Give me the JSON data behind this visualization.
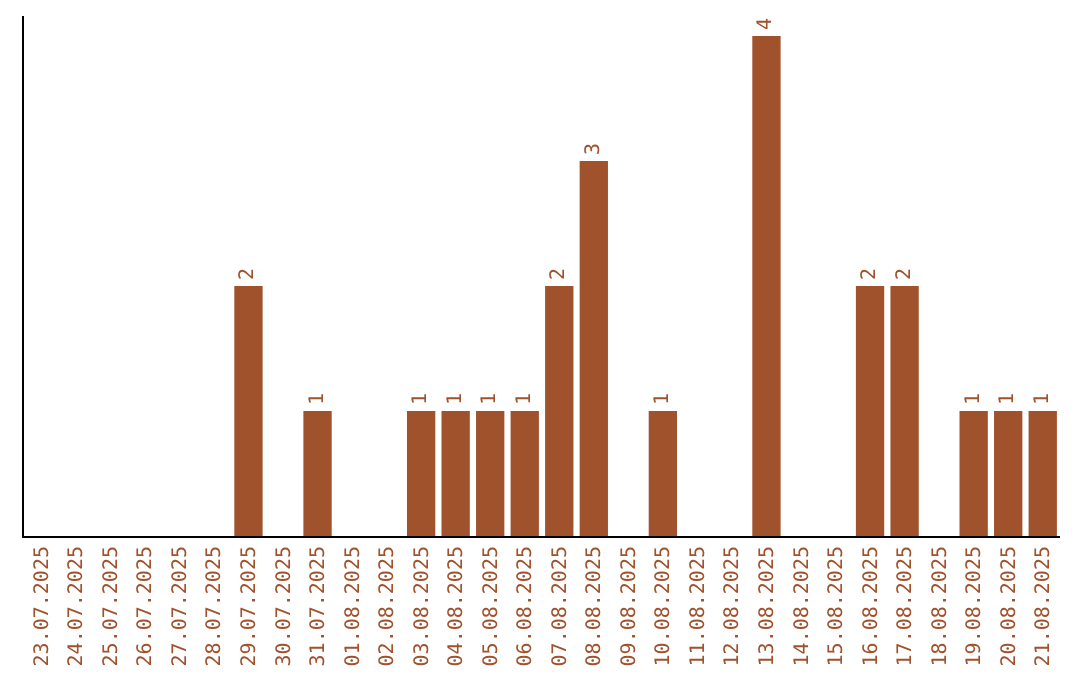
{
  "chart_data": {
    "type": "bar",
    "categories": [
      "23.07.2025",
      "24.07.2025",
      "25.07.2025",
      "26.07.2025",
      "27.07.2025",
      "28.07.2025",
      "29.07.2025",
      "30.07.2025",
      "31.07.2025",
      "01.08.2025",
      "02.08.2025",
      "03.08.2025",
      "04.08.2025",
      "05.08.2025",
      "06.08.2025",
      "07.08.2025",
      "08.08.2025",
      "09.08.2025",
      "10.08.2025",
      "11.08.2025",
      "12.08.2025",
      "13.08.2025",
      "14.08.2025",
      "15.08.2025",
      "16.08.2025",
      "17.08.2025",
      "18.08.2025",
      "19.08.2025",
      "20.08.2025",
      "21.08.2025"
    ],
    "values": [
      0,
      0,
      0,
      0,
      0,
      0,
      2,
      0,
      1,
      0,
      0,
      1,
      1,
      1,
      1,
      2,
      3,
      0,
      1,
      0,
      0,
      4,
      0,
      0,
      2,
      2,
      0,
      1,
      1,
      1
    ],
    "value_labels": [
      null,
      null,
      null,
      null,
      null,
      null,
      "2",
      null,
      "1",
      null,
      null,
      "1",
      "1",
      "1",
      "1",
      "2",
      "3",
      null,
      "1",
      null,
      null,
      "4",
      null,
      null,
      "2",
      "2",
      null,
      "1",
      "1",
      "1"
    ],
    "color": "#a0522d",
    "tick_labels": "x"
  }
}
